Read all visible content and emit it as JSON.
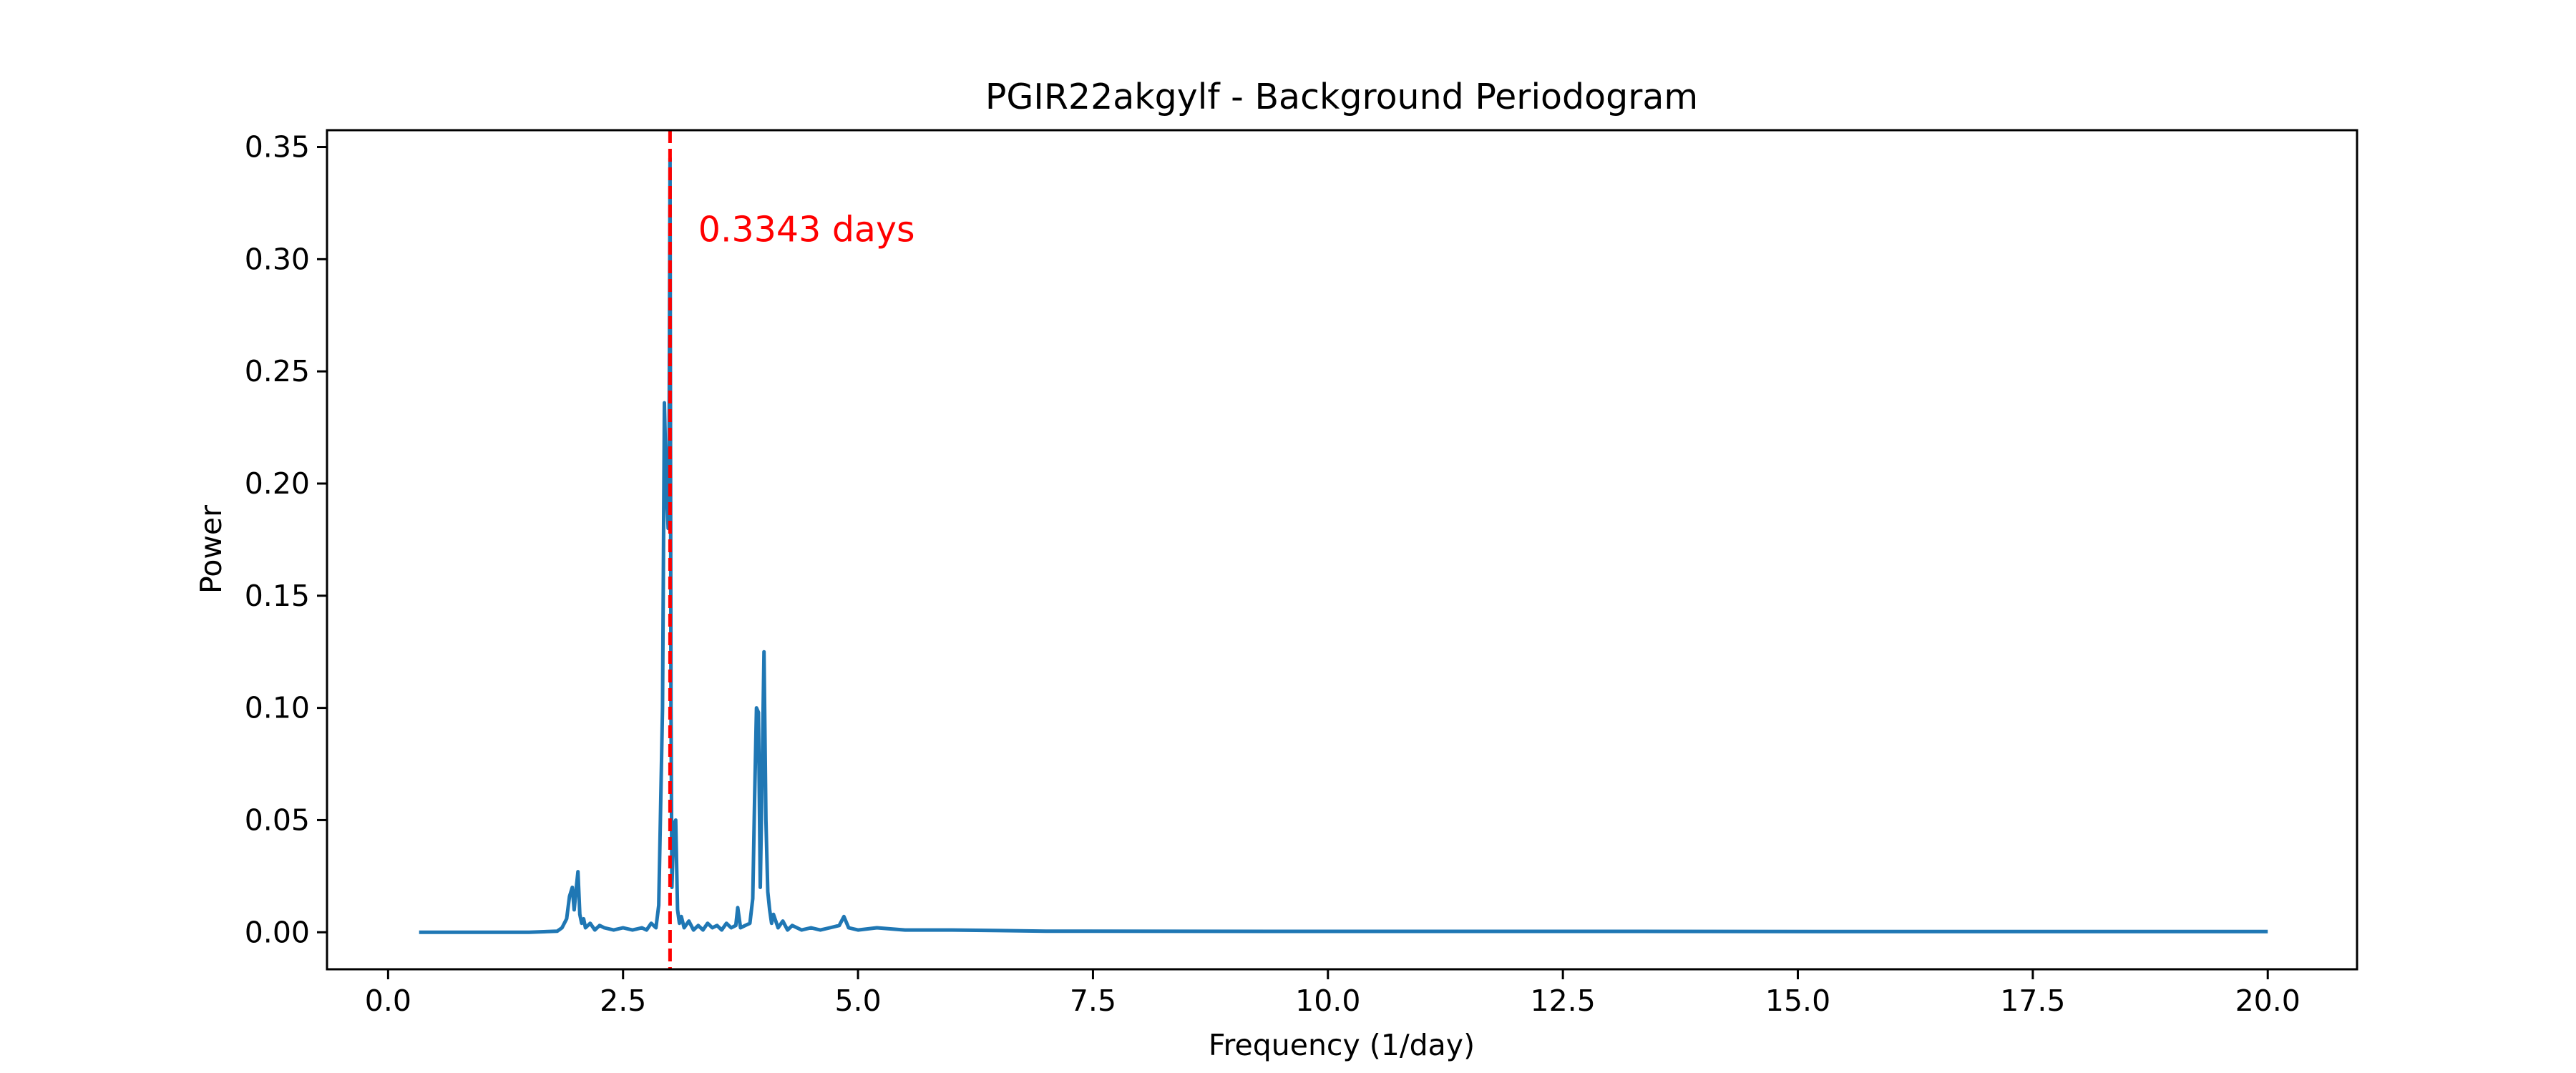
{
  "chart_data": {
    "type": "line",
    "title": "PGIR22akgylf  - Background Periodogram",
    "xlabel": "Frequency (1/day)",
    "ylabel": "Power",
    "xlim": [
      -0.65,
      20.95
    ],
    "ylim": [
      -0.0165,
      0.3575
    ],
    "xticks": [
      0.0,
      2.5,
      5.0,
      7.5,
      10.0,
      12.5,
      15.0,
      17.5,
      20.0
    ],
    "xtick_labels": [
      "0.0",
      "2.5",
      "5.0",
      "7.5",
      "10.0",
      "12.5",
      "15.0",
      "17.5",
      "20.0"
    ],
    "yticks": [
      0.0,
      0.05,
      0.1,
      0.15,
      0.2,
      0.25,
      0.3,
      0.35
    ],
    "ytick_labels": [
      "0.00",
      "0.05",
      "0.10",
      "0.15",
      "0.20",
      "0.25",
      "0.30",
      "0.35"
    ],
    "grid": false,
    "series": [
      {
        "color": "#1f77b4",
        "x": [
          0.33,
          1.0,
          1.5,
          1.8,
          1.85,
          1.9,
          1.93,
          1.96,
          1.98,
          2.0,
          2.02,
          2.04,
          2.06,
          2.08,
          2.1,
          2.15,
          2.2,
          2.25,
          2.3,
          2.4,
          2.5,
          2.6,
          2.7,
          2.75,
          2.8,
          2.85,
          2.88,
          2.92,
          2.94,
          2.96,
          2.98,
          2.99,
          3.0,
          3.01,
          3.02,
          3.04,
          3.06,
          3.08,
          3.1,
          3.12,
          3.15,
          3.2,
          3.25,
          3.3,
          3.35,
          3.4,
          3.45,
          3.5,
          3.55,
          3.6,
          3.65,
          3.7,
          3.72,
          3.75,
          3.8,
          3.85,
          3.88,
          3.9,
          3.92,
          3.94,
          3.96,
          3.98,
          4.0,
          4.02,
          4.04,
          4.06,
          4.08,
          4.1,
          4.15,
          4.2,
          4.25,
          4.3,
          4.4,
          4.5,
          4.6,
          4.7,
          4.8,
          4.85,
          4.9,
          5.0,
          5.2,
          5.5,
          6.0,
          7.0,
          10.0,
          13.0,
          16.0,
          20.0
        ],
        "y": [
          0.0,
          0.0,
          0.0,
          0.0005,
          0.002,
          0.006,
          0.016,
          0.02,
          0.01,
          0.019,
          0.027,
          0.008,
          0.004,
          0.006,
          0.002,
          0.004,
          0.001,
          0.003,
          0.002,
          0.001,
          0.002,
          0.001,
          0.002,
          0.001,
          0.004,
          0.002,
          0.012,
          0.1,
          0.236,
          0.2,
          0.18,
          0.22,
          0.345,
          0.1,
          0.02,
          0.048,
          0.05,
          0.01,
          0.004,
          0.007,
          0.002,
          0.005,
          0.001,
          0.003,
          0.001,
          0.004,
          0.002,
          0.003,
          0.001,
          0.004,
          0.002,
          0.003,
          0.011,
          0.002,
          0.003,
          0.004,
          0.015,
          0.06,
          0.1,
          0.098,
          0.02,
          0.07,
          0.125,
          0.05,
          0.018,
          0.01,
          0.004,
          0.008,
          0.002,
          0.005,
          0.001,
          0.003,
          0.001,
          0.002,
          0.001,
          0.002,
          0.003,
          0.007,
          0.002,
          0.001,
          0.002,
          0.001,
          0.001,
          0.0005,
          0.0004,
          0.0004,
          0.0003,
          0.0003
        ]
      }
    ],
    "vline": {
      "x": 3.0,
      "color": "#ff0000",
      "style": "dashed"
    },
    "annotation": {
      "text": "0.3343 days",
      "x": 3.3,
      "y": 0.308,
      "color": "#ff0000"
    }
  }
}
